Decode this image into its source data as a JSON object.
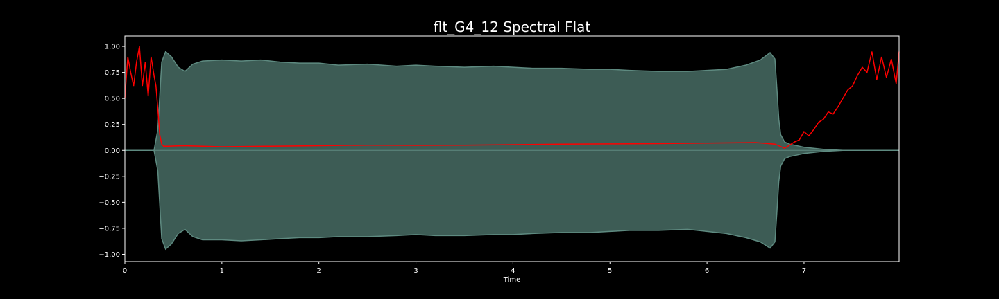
{
  "chart_data": {
    "type": "line",
    "title": "flt_G4_12 Spectral Flat",
    "xlabel": "Time",
    "ylabel": "",
    "xlim": [
      0,
      7.98
    ],
    "ylim": [
      -1.07,
      1.1
    ],
    "x_ticks": [
      0,
      1,
      2,
      3,
      4,
      5,
      6,
      7
    ],
    "x_tick_labels": [
      "0",
      "1",
      "2",
      "3",
      "4",
      "5",
      "6",
      "7"
    ],
    "y_ticks": [
      1.0,
      0.75,
      0.5,
      0.25,
      0.0,
      -0.25,
      -0.5,
      -0.75,
      -1.0
    ],
    "y_tick_labels": [
      "1.00",
      "0.75",
      "0.50",
      "0.25",
      "0.00",
      "−0.25",
      "−0.50",
      "−0.75",
      "−1.00"
    ],
    "grid": false,
    "colors": {
      "background": "#000000",
      "axes": "#ffffff",
      "waveform_fill": "#3d5c55",
      "waveform_edge": "#5e8a80",
      "flatness_line": "#ff0000"
    },
    "series": [
      {
        "name": "Waveform envelope",
        "kind": "envelope",
        "x": [
          0,
          0.3,
          0.34,
          0.38,
          0.42,
          0.48,
          0.55,
          0.62,
          0.7,
          0.8,
          1.0,
          1.2,
          1.4,
          1.6,
          1.8,
          2.0,
          2.2,
          2.5,
          2.8,
          3.0,
          3.2,
          3.5,
          3.8,
          4.0,
          4.2,
          4.5,
          4.8,
          5.0,
          5.2,
          5.5,
          5.8,
          6.0,
          6.2,
          6.4,
          6.55,
          6.65,
          6.7,
          6.72,
          6.74,
          6.76,
          6.8,
          6.85,
          6.9,
          6.95,
          7.0,
          7.1,
          7.2,
          7.3,
          7.4,
          7.6,
          7.98
        ],
        "upper": [
          0.0,
          0.0,
          0.2,
          0.85,
          0.95,
          0.9,
          0.8,
          0.76,
          0.83,
          0.86,
          0.87,
          0.86,
          0.87,
          0.85,
          0.84,
          0.84,
          0.82,
          0.83,
          0.81,
          0.82,
          0.81,
          0.8,
          0.81,
          0.8,
          0.79,
          0.79,
          0.78,
          0.78,
          0.77,
          0.76,
          0.76,
          0.77,
          0.78,
          0.82,
          0.87,
          0.94,
          0.88,
          0.6,
          0.3,
          0.15,
          0.08,
          0.06,
          0.05,
          0.04,
          0.03,
          0.02,
          0.01,
          0.005,
          0.0,
          0.0,
          0.0
        ],
        "lower": [
          0.0,
          0.0,
          -0.2,
          -0.85,
          -0.95,
          -0.9,
          -0.8,
          -0.76,
          -0.83,
          -0.86,
          -0.86,
          -0.87,
          -0.86,
          -0.85,
          -0.84,
          -0.84,
          -0.83,
          -0.83,
          -0.82,
          -0.81,
          -0.82,
          -0.82,
          -0.81,
          -0.81,
          -0.8,
          -0.79,
          -0.79,
          -0.78,
          -0.77,
          -0.77,
          -0.76,
          -0.78,
          -0.8,
          -0.84,
          -0.88,
          -0.94,
          -0.88,
          -0.6,
          -0.3,
          -0.15,
          -0.08,
          -0.06,
          -0.05,
          -0.04,
          -0.03,
          -0.02,
          -0.01,
          -0.005,
          0.0,
          0.0,
          0.0
        ]
      },
      {
        "name": "Spectral flatness",
        "kind": "line",
        "x": [
          0,
          0.03,
          0.06,
          0.09,
          0.12,
          0.15,
          0.18,
          0.21,
          0.24,
          0.27,
          0.3,
          0.32,
          0.34,
          0.36,
          0.38,
          0.4,
          0.45,
          0.6,
          1.0,
          1.5,
          2.0,
          2.5,
          3.0,
          3.5,
          4.0,
          4.5,
          5.0,
          5.5,
          6.0,
          6.5,
          6.7,
          6.8,
          6.85,
          6.9,
          6.95,
          7.0,
          7.05,
          7.1,
          7.15,
          7.2,
          7.25,
          7.3,
          7.35,
          7.4,
          7.45,
          7.5,
          7.55,
          7.6,
          7.65,
          7.7,
          7.75,
          7.8,
          7.85,
          7.9,
          7.95,
          7.98
        ],
        "y": [
          0.5,
          0.9,
          0.75,
          0.62,
          0.85,
          1.0,
          0.62,
          0.85,
          0.52,
          0.9,
          0.72,
          0.62,
          0.4,
          0.15,
          0.06,
          0.04,
          0.04,
          0.045,
          0.035,
          0.04,
          0.045,
          0.05,
          0.048,
          0.05,
          0.055,
          0.06,
          0.062,
          0.065,
          0.07,
          0.075,
          0.06,
          0.02,
          0.05,
          0.08,
          0.1,
          0.18,
          0.14,
          0.2,
          0.27,
          0.3,
          0.37,
          0.35,
          0.42,
          0.5,
          0.58,
          0.62,
          0.72,
          0.8,
          0.75,
          0.95,
          0.68,
          0.9,
          0.7,
          0.88,
          0.64,
          0.95
        ]
      }
    ]
  }
}
